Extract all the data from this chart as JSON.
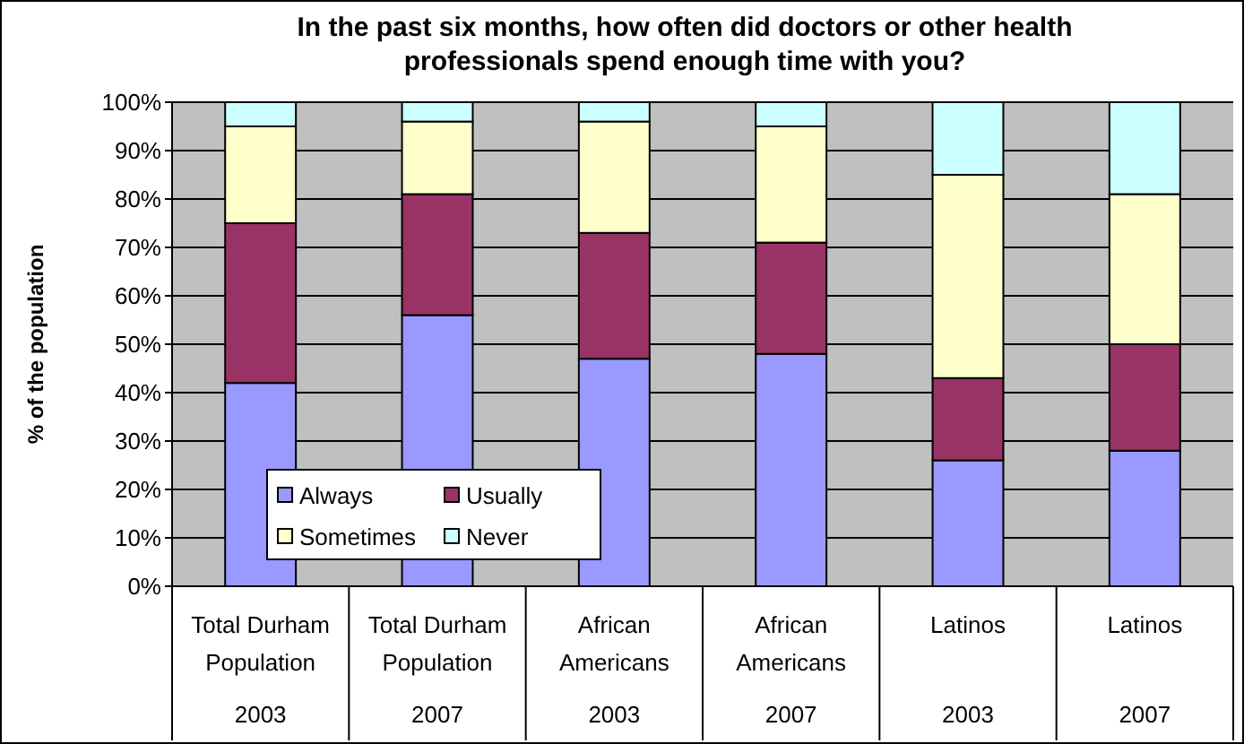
{
  "chart_data": {
    "type": "bar",
    "stacked": true,
    "title": "In the past six months, how often did doctors or other health professionals spend enough time with you?",
    "ylabel": "% of the population",
    "categories": [
      "Total Durham Population\n2003",
      "Total Durham Population\n2007",
      "African Americans\n2003",
      "African Americans\n2007",
      "Latinos\n2003",
      "Latinos\n2007"
    ],
    "series": [
      {
        "name": "Always",
        "color": "#9999ff",
        "values": [
          42,
          56,
          47,
          48,
          26,
          28
        ]
      },
      {
        "name": "Usually",
        "color": "#993366",
        "values": [
          33,
          25,
          26,
          23,
          17,
          22
        ]
      },
      {
        "name": "Sometimes",
        "color": "#ffffcc",
        "values": [
          20,
          15,
          23,
          24,
          42,
          31
        ]
      },
      {
        "name": "Never",
        "color": "#ccffff",
        "values": [
          5,
          4,
          4,
          5,
          15,
          19
        ]
      }
    ],
    "ylim": [
      0,
      100
    ],
    "yticks": [
      {
        "value": 0,
        "label": "0%"
      },
      {
        "value": 10,
        "label": "10%"
      },
      {
        "value": 20,
        "label": "20%"
      },
      {
        "value": 30,
        "label": "30%"
      },
      {
        "value": 40,
        "label": "40%"
      },
      {
        "value": 50,
        "label": "50%"
      },
      {
        "value": 60,
        "label": "60%"
      },
      {
        "value": 70,
        "label": "70%"
      },
      {
        "value": 80,
        "label": "80%"
      },
      {
        "value": 90,
        "label": "90%"
      },
      {
        "value": 100,
        "label": "100%"
      }
    ],
    "grid": "y",
    "legend": "bottom left"
  }
}
